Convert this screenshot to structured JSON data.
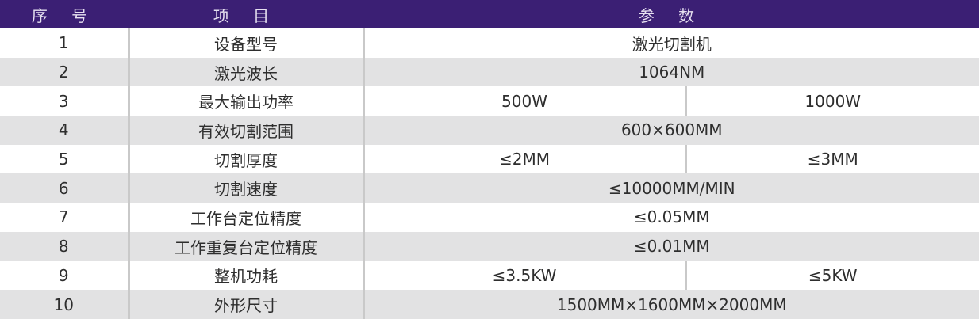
{
  "header": {
    "col_no": "序 号",
    "col_item": "项 目",
    "col_param": "参 数"
  },
  "rows": [
    {
      "no": "1",
      "item": "设备型号",
      "value": "激光切割机"
    },
    {
      "no": "2",
      "item": "激光波长",
      "value": "1064NM"
    },
    {
      "no": "3",
      "item": "最大输出功率",
      "value_a": "500W",
      "value_b": "1000W"
    },
    {
      "no": "4",
      "item": "有效切割范围",
      "value": "600×600MM"
    },
    {
      "no": "5",
      "item": "切割厚度",
      "value_a": "≤2MM",
      "value_b": "≤3MM"
    },
    {
      "no": "6",
      "item": "切割速度",
      "value": "≤10000MM/MIN"
    },
    {
      "no": "7",
      "item": "工作台定位精度",
      "value": "≤0.05MM"
    },
    {
      "no": "8",
      "item": "工作重复台定位精度",
      "value": "≤0.01MM"
    },
    {
      "no": "9",
      "item": "整机功耗",
      "value_a": "≤3.5KW",
      "value_b": "≤5KW"
    },
    {
      "no": "10",
      "item": "外形尺寸",
      "value": "1500MM×1600MM×2000MM"
    }
  ],
  "colors": {
    "header_bg": "#3b1f74",
    "alt_row_bg": "#e2e2e3"
  }
}
